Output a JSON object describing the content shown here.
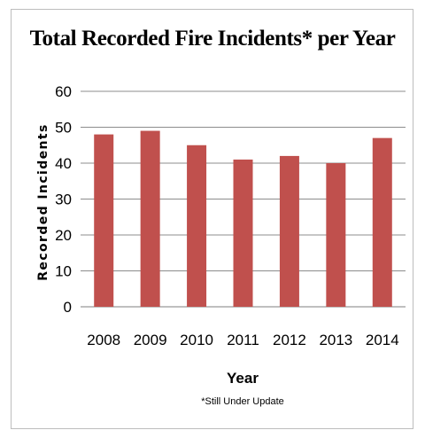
{
  "chart_data": {
    "type": "bar",
    "title": "Total Recorded Fire Incidents* per Year",
    "xlabel": "Year",
    "ylabel": "Recorded Incidents",
    "footnote": "*Still Under Update",
    "categories": [
      "2008",
      "2009",
      "2010",
      "2011",
      "2012",
      "2013",
      "2014"
    ],
    "values": [
      48,
      49,
      45,
      41,
      42,
      40,
      47
    ],
    "ylim": [
      0,
      60
    ],
    "yticks": [
      0,
      10,
      20,
      30,
      40,
      50,
      60
    ],
    "grid": true,
    "legend": "none",
    "bar_color": "#c0504d"
  }
}
